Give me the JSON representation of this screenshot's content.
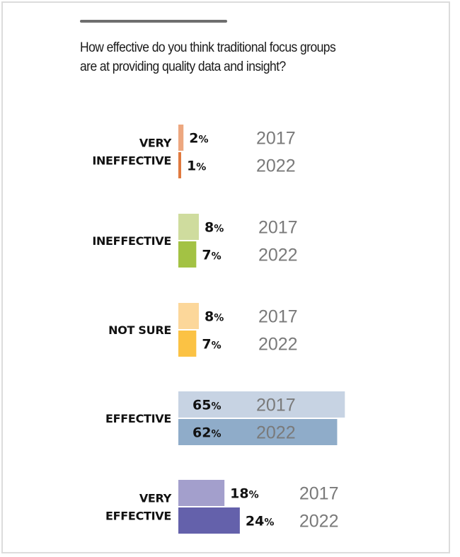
{
  "title": "How effective do you think traditional focus groups are at providing quality data and insight?",
  "chart_data": {
    "type": "bar",
    "orientation": "horizontal",
    "title": "How effective do you think traditional focus groups are at providing quality data and insight?",
    "categories": [
      [
        "VERY",
        "INEFFECTIVE"
      ],
      [
        "INEFFECTIVE"
      ],
      [
        "NOT SURE"
      ],
      [
        "EFFECTIVE"
      ],
      [
        "VERY",
        "EFFECTIVE"
      ]
    ],
    "series": [
      {
        "name": "2017",
        "values": [
          2,
          8,
          8,
          65,
          18
        ],
        "colors": [
          "#eda77f",
          "#cfdc9e",
          "#fcd79a",
          "#c7d3e3",
          "#a39fcc"
        ]
      },
      {
        "name": "2022",
        "values": [
          1,
          7,
          7,
          62,
          24
        ],
        "colors": [
          "#e07a3f",
          "#a3c244",
          "#fbc244",
          "#8facc9",
          "#6461ab"
        ]
      }
    ],
    "unit": "%",
    "grid": false,
    "legend": "none"
  }
}
